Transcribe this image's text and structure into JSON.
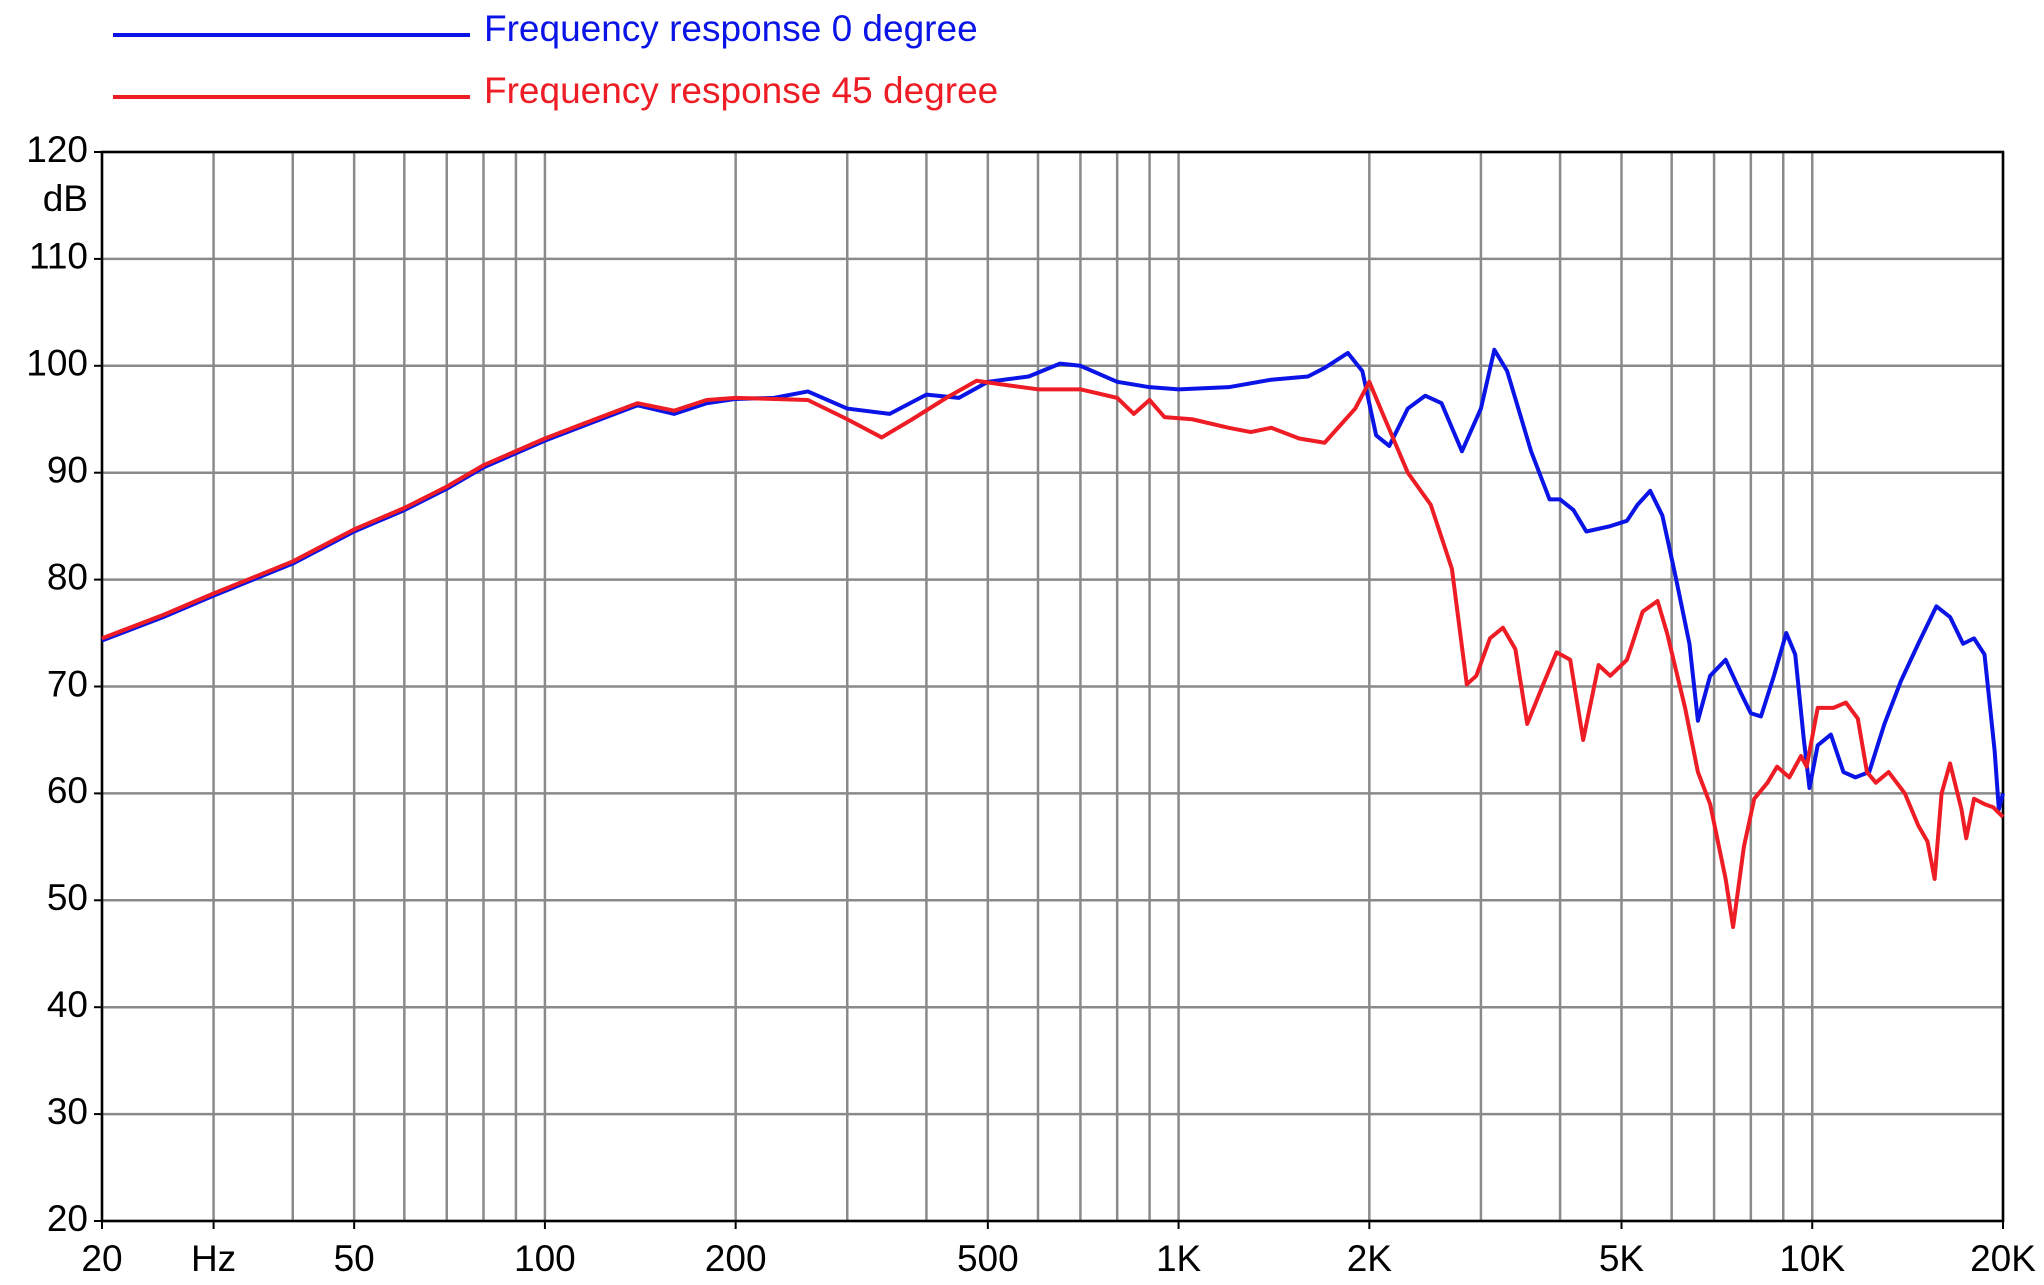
{
  "chart_data": {
    "type": "line",
    "log_x": true,
    "grid": true,
    "legend": "top-left",
    "ylabel": "dB",
    "xlim": [
      20,
      20000
    ],
    "ylim": [
      20,
      120
    ],
    "xticks": [
      20,
      {
        "value": 30,
        "label": "Hz"
      },
      50,
      100,
      200,
      500,
      {
        "value": 1000,
        "label": "1K"
      },
      {
        "value": 2000,
        "label": "2K"
      },
      {
        "value": 5000,
        "label": "5K"
      },
      {
        "value": 10000,
        "label": "10K"
      },
      {
        "value": 20000,
        "label": "20K"
      }
    ],
    "x_minor_ticks": [
      40,
      60,
      70,
      80,
      90,
      300,
      400,
      600,
      700,
      800,
      900,
      3000,
      4000,
      6000,
      7000,
      8000,
      9000
    ],
    "yticks": [
      20,
      30,
      40,
      50,
      60,
      70,
      80,
      90,
      100,
      110,
      120
    ],
    "series": [
      {
        "name": "Frequency response 0 degree",
        "color": "#0a14e6",
        "x": [
          20,
          25,
          30,
          40,
          50,
          60,
          70,
          80,
          100,
          120,
          140,
          160,
          180,
          200,
          230,
          260,
          300,
          350,
          400,
          450,
          500,
          580,
          650,
          700,
          800,
          900,
          1000,
          1200,
          1400,
          1600,
          1700,
          1850,
          1950,
          2050,
          2150,
          2300,
          2450,
          2600,
          2800,
          3000,
          3150,
          3300,
          3600,
          3850,
          4000,
          4200,
          4400,
          4800,
          5100,
          5300,
          5550,
          5800,
          6100,
          6400,
          6600,
          6900,
          7300,
          7700,
          8000,
          8300,
          8700,
          9100,
          9400,
          9700,
          9900,
          10200,
          10700,
          11200,
          11700,
          12300,
          13000,
          13800,
          14700,
          15700,
          16500,
          17300,
          18000,
          18700,
          19400,
          19700,
          20000
        ],
        "values": [
          74.3,
          76.5,
          78.5,
          81.5,
          84.5,
          86.5,
          88.5,
          90.5,
          93,
          94.8,
          96.3,
          95.5,
          96.5,
          96.9,
          97,
          97.6,
          96,
          95.5,
          97.3,
          97,
          98.5,
          99,
          100.2,
          100,
          98.5,
          98,
          97.8,
          98,
          98.7,
          99,
          99.8,
          101.2,
          99.5,
          93.5,
          92.5,
          96,
          97.2,
          96.5,
          92,
          96,
          101.5,
          99.5,
          92,
          87.5,
          87.5,
          86.5,
          84.5,
          85,
          85.5,
          87,
          88.3,
          86,
          80,
          74,
          66.8,
          71,
          72.5,
          69.5,
          67.5,
          67.2,
          71,
          75,
          73,
          65,
          60.5,
          64.5,
          65.5,
          62,
          61.5,
          62,
          66.5,
          70.5,
          74,
          77.5,
          76.5,
          74,
          74.5,
          73,
          64,
          58.5,
          60
        ]
      },
      {
        "name": "Frequency response 45 degree",
        "color": "#ee1c24",
        "x": [
          20,
          25,
          30,
          40,
          50,
          60,
          70,
          80,
          100,
          120,
          140,
          160,
          180,
          200,
          260,
          300,
          340,
          380,
          430,
          480,
          520,
          600,
          700,
          800,
          850,
          900,
          950,
          1050,
          1200,
          1300,
          1400,
          1550,
          1700,
          1900,
          2000,
          2100,
          2300,
          2500,
          2700,
          2850,
          2950,
          3100,
          3250,
          3400,
          3550,
          3750,
          3950,
          4150,
          4350,
          4600,
          4800,
          5100,
          5200,
          5400,
          5700,
          5900,
          6300,
          6600,
          6900,
          7300,
          7500,
          7800,
          8100,
          8500,
          8800,
          9200,
          9600,
          9800,
          10200,
          10800,
          11300,
          11800,
          12200,
          12600,
          13200,
          14000,
          14700,
          15200,
          15600,
          16000,
          16500,
          17200,
          17500,
          18000,
          18700,
          19300,
          20000
        ],
        "values": [
          74.5,
          76.7,
          78.7,
          81.7,
          84.7,
          86.7,
          88.7,
          90.7,
          93.2,
          95,
          96.5,
          95.8,
          96.8,
          97,
          96.8,
          95,
          93.3,
          95,
          97,
          98.6,
          98.3,
          97.8,
          97.8,
          97,
          95.5,
          96.8,
          95.2,
          95,
          94.2,
          93.8,
          94.2,
          93.2,
          92.8,
          96,
          98.5,
          95.5,
          90,
          87,
          81,
          70.2,
          71,
          74.5,
          75.5,
          73.5,
          66.5,
          70,
          73.2,
          72.5,
          65,
          72,
          71,
          72.5,
          74,
          77,
          78,
          75,
          68,
          62,
          59,
          52,
          47.5,
          55,
          59.5,
          61,
          62.5,
          61.5,
          63.5,
          62.5,
          68,
          68,
          68.5,
          67,
          62,
          61,
          62,
          60,
          57,
          55.5,
          52,
          60,
          62.8,
          58.5,
          55.8,
          59.5,
          59,
          58.7,
          57.8
        ]
      }
    ]
  }
}
